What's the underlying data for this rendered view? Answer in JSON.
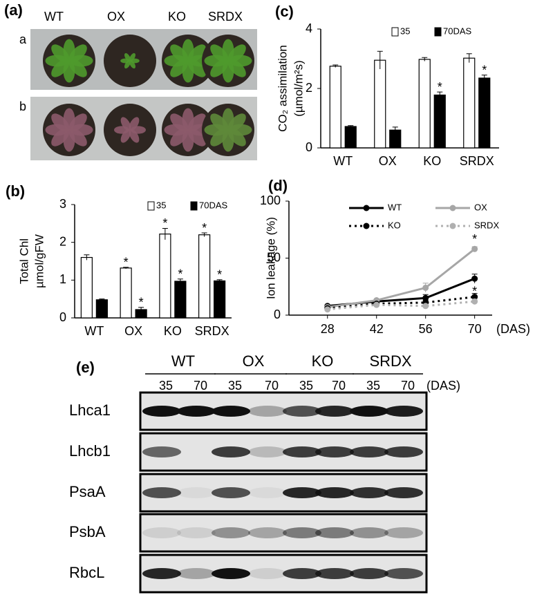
{
  "photo_panel": {
    "label": "(a)",
    "rows": [
      "a",
      "b"
    ],
    "genotypes": [
      "WT",
      "OX",
      "KO",
      "SRDX"
    ]
  },
  "chart_data": [
    {
      "type": "bar",
      "label": "(b)",
      "ylabel": [
        "Total Chl",
        "µmol/gFW"
      ],
      "categories": [
        "WT",
        "OX",
        "KO",
        "SRDX"
      ],
      "series": [
        {
          "name": "35",
          "color": "#ffffff",
          "values": [
            1.6,
            1.32,
            2.22,
            2.2
          ],
          "errors": [
            0.07,
            0.02,
            0.15,
            0.05
          ],
          "significance": [
            null,
            "*",
            "*",
            "*"
          ]
        },
        {
          "name": "70DAS",
          "color": "#000000",
          "values": [
            0.48,
            0.22,
            0.97,
            0.98
          ],
          "errors": [
            0.02,
            0.06,
            0.06,
            0.03
          ],
          "significance": [
            null,
            "*",
            "*",
            "*"
          ]
        }
      ],
      "ylim": [
        0,
        3
      ],
      "yticks": [
        0,
        1,
        2,
        3
      ]
    },
    {
      "type": "bar",
      "label": "(c)",
      "ylabel": [
        "CO₂ assimilation",
        "(µmol/m²s)"
      ],
      "categories": [
        "WT",
        "OX",
        "KO",
        "SRDX"
      ],
      "series": [
        {
          "name": "35",
          "color": "#ffffff",
          "values": [
            2.75,
            2.95,
            2.98,
            3.02
          ],
          "errors": [
            0.04,
            0.3,
            0.06,
            0.15
          ],
          "significance": [
            null,
            null,
            null,
            null
          ]
        },
        {
          "name": "70DAS",
          "color": "#000000",
          "values": [
            0.72,
            0.6,
            1.78,
            2.35
          ],
          "errors": [
            0.03,
            0.1,
            0.1,
            0.1
          ],
          "significance": [
            null,
            null,
            "*",
            "*"
          ]
        }
      ],
      "ylim": [
        0,
        4
      ],
      "yticks": [
        0,
        2,
        4
      ]
    },
    {
      "type": "line",
      "label": "(d)",
      "ylabel": [
        "Ion leakage  (%)"
      ],
      "xlabel": "(DAS)",
      "x": [
        28,
        42,
        56,
        70
      ],
      "xlim": [
        17,
        75
      ],
      "xticks": [
        28,
        42,
        56,
        70
      ],
      "series": [
        {
          "name": "WT",
          "color": "#000000",
          "dashed": false,
          "values": [
            8,
            12,
            15,
            32
          ],
          "errors": [
            1,
            1,
            3,
            4
          ],
          "significance": [
            null,
            null,
            null,
            null
          ]
        },
        {
          "name": "OX",
          "color": "#a6a6a6",
          "dashed": false,
          "values": [
            7,
            13,
            24,
            58
          ],
          "errors": [
            1,
            1,
            4,
            2
          ],
          "significance": [
            null,
            null,
            null,
            "*"
          ]
        },
        {
          "name": "KO",
          "color": "#000000",
          "dashed": true,
          "values": [
            6,
            10,
            11,
            16
          ],
          "errors": [
            1,
            1,
            2,
            3
          ],
          "significance": [
            null,
            null,
            null,
            null
          ]
        },
        {
          "name": "SRDX",
          "color": "#b0b0b0",
          "dashed": true,
          "values": [
            5,
            9,
            8,
            12
          ],
          "errors": [
            1,
            1,
            1,
            2
          ],
          "significance": [
            null,
            null,
            null,
            "*"
          ]
        }
      ],
      "ylim": [
        0,
        100
      ],
      "yticks": [
        0,
        50,
        100
      ]
    }
  ],
  "blot_panel": {
    "label": "(e)",
    "genotypes": [
      "WT",
      "OX",
      "KO",
      "SRDX"
    ],
    "timepoints": [
      "35",
      "70",
      "35",
      "70",
      "35",
      "70",
      "35",
      "70"
    ],
    "time_unit": "(DAS)",
    "proteins": [
      "Lhca1",
      "Lhcb1",
      "PsaA",
      "PsbA",
      "RbcL"
    ]
  }
}
